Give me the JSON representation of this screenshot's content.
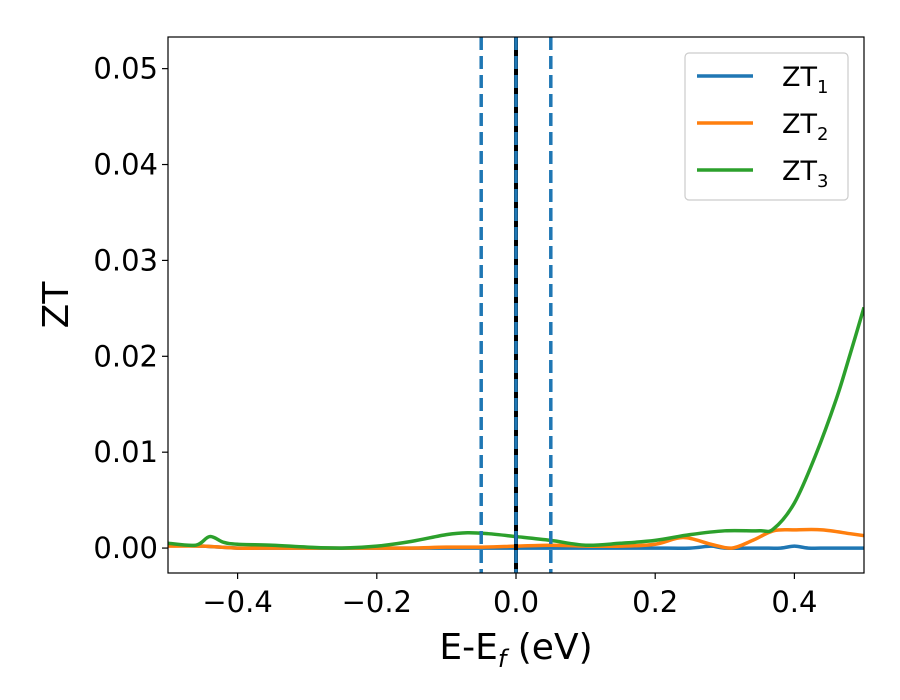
{
  "chart_data": {
    "type": "line",
    "title": "",
    "xlabel": {
      "main": "E-E",
      "sub": "f",
      "suffix": " (eV)"
    },
    "ylabel": "ZT",
    "xlim": [
      -0.5,
      0.5
    ],
    "ylim": [
      -0.0026,
      0.0533
    ],
    "xticks": [
      -0.4,
      -0.2,
      0.0,
      0.2,
      0.4
    ],
    "xtick_labels": [
      "−0.4",
      "−0.2",
      "0.0",
      "0.2",
      "0.4"
    ],
    "yticks": [
      0.0,
      0.01,
      0.02,
      0.03,
      0.04,
      0.05
    ],
    "ytick_labels": [
      "0.00",
      "0.01",
      "0.02",
      "0.03",
      "0.04",
      "0.05"
    ],
    "grid": false,
    "legend_position": "top-right",
    "series": [
      {
        "name": "ZT",
        "sub": "1",
        "color": "#1f77b4",
        "x": [
          -0.5,
          -0.45,
          -0.4,
          -0.35,
          -0.3,
          -0.25,
          -0.2,
          -0.15,
          -0.1,
          -0.05,
          0.0,
          0.05,
          0.1,
          0.15,
          0.2,
          0.25,
          0.28,
          0.3,
          0.35,
          0.38,
          0.4,
          0.42,
          0.45,
          0.5
        ],
        "y": [
          0.0003,
          0.0002,
          0.0,
          0.0,
          0.0,
          0.0,
          0.0,
          0.0,
          0.0,
          0.0,
          0.0,
          0.0,
          0.0,
          0.0,
          0.0,
          0.0,
          0.0002,
          0.0,
          0.0,
          0.0,
          0.0002,
          0.0,
          0.0,
          0.0
        ]
      },
      {
        "name": "ZT",
        "sub": "2",
        "color": "#ff7f0e",
        "x": [
          -0.5,
          -0.45,
          -0.4,
          -0.35,
          -0.3,
          -0.25,
          -0.2,
          -0.15,
          -0.1,
          -0.05,
          0.0,
          0.05,
          0.1,
          0.15,
          0.2,
          0.24,
          0.28,
          0.31,
          0.34,
          0.37,
          0.4,
          0.44,
          0.48,
          0.5
        ],
        "y": [
          0.0002,
          0.0002,
          0.0,
          0.0,
          0.0,
          0.0,
          0.0,
          0.0,
          0.0001,
          0.0001,
          0.0002,
          0.0003,
          0.0002,
          0.0002,
          0.0004,
          0.0011,
          0.0004,
          0.0,
          0.0008,
          0.0018,
          0.0019,
          0.0019,
          0.0015,
          0.0013
        ]
      },
      {
        "name": "ZT",
        "sub": "3",
        "color": "#2ca02c",
        "x": [
          -0.5,
          -0.46,
          -0.44,
          -0.42,
          -0.4,
          -0.35,
          -0.3,
          -0.25,
          -0.2,
          -0.15,
          -0.1,
          -0.07,
          -0.04,
          0.0,
          0.05,
          0.1,
          0.15,
          0.2,
          0.25,
          0.3,
          0.35,
          0.37,
          0.4,
          0.43,
          0.46,
          0.48,
          0.5
        ],
        "y": [
          0.0005,
          0.0003,
          0.0012,
          0.0006,
          0.0004,
          0.0003,
          0.0001,
          0.0,
          0.0002,
          0.0007,
          0.0014,
          0.0016,
          0.0015,
          0.0012,
          0.0008,
          0.0003,
          0.0005,
          0.0008,
          0.0014,
          0.0018,
          0.0018,
          0.002,
          0.0047,
          0.0096,
          0.0155,
          0.0202,
          0.0251
        ]
      }
    ],
    "vlines": [
      {
        "x": -0.05,
        "style": "dashed",
        "color": "#1f77b4"
      },
      {
        "x": 0.0,
        "style": "solid",
        "color": "#000000"
      },
      {
        "x": 0.0,
        "style": "dashed",
        "color": "#1f77b4"
      },
      {
        "x": 0.05,
        "style": "dashed",
        "color": "#1f77b4"
      }
    ]
  }
}
